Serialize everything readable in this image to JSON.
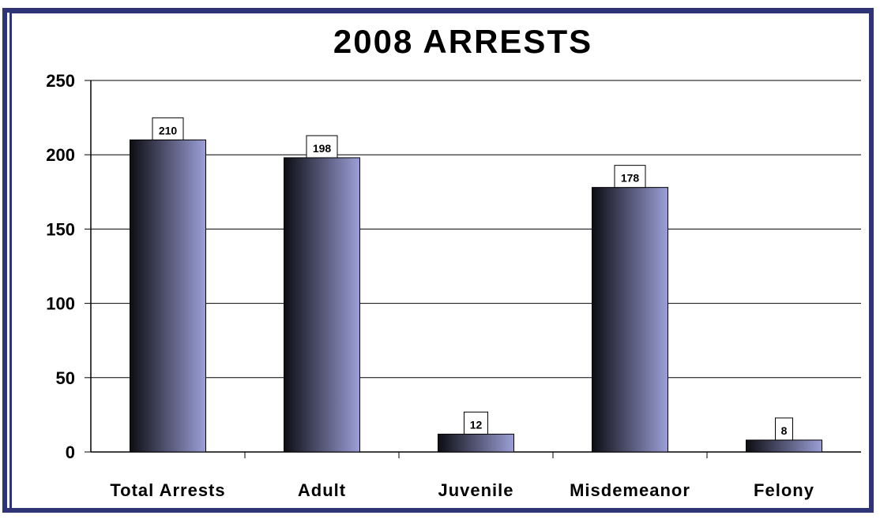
{
  "chart_data": {
    "type": "bar",
    "title": "2008 ARRESTS",
    "categories": [
      "Total Arrests",
      "Adult",
      "Juvenile",
      "Misdemeanor",
      "Felony"
    ],
    "values": [
      210,
      198,
      12,
      178,
      8
    ],
    "data_labels": [
      "210",
      "198",
      "12",
      "178",
      "8"
    ],
    "ylim": [
      0,
      250
    ],
    "yticks": [
      0,
      50,
      100,
      150,
      200,
      250
    ],
    "xlabel": "",
    "ylabel": "",
    "grid": true,
    "legend": "none",
    "bar_gradient": [
      "#0d0d14",
      "#9b9fd6"
    ],
    "frame_color": "#2e3476"
  }
}
